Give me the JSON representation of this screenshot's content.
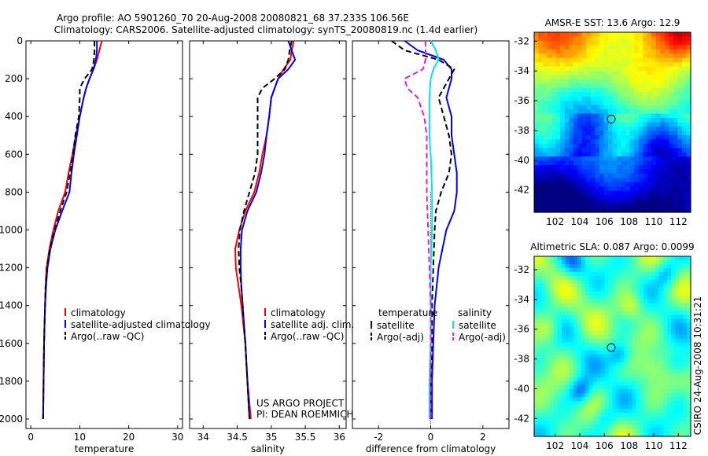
{
  "header": {
    "line1": "Argo profile: AO 5901260_70 20-Aug-2008 20080821_68 37.233S 106.56E",
    "line2": "Climatology: CARS2006. Satellite-adjusted climatology: synTS_20080819.nc (1.4d earlier)"
  },
  "side_label": "CSIRO 24-Aug-2008 10:31:21",
  "credits": {
    "line1": "US ARGO PROJECT",
    "line2": "PI: DEAN ROEMMICH"
  },
  "colors": {
    "climatology": "#ff0000",
    "satellite": "#0000ff",
    "argo": "#000000",
    "sat_sal": "#00e5ee",
    "argo_sal": "#e020e0"
  },
  "chart_data": [
    {
      "type": "line",
      "xlabel": "temperature",
      "xlim": [
        -1,
        31
      ],
      "ylim": [
        2050,
        0
      ],
      "xticks": [
        0,
        10,
        20,
        30
      ],
      "yticks": [
        0,
        200,
        400,
        600,
        800,
        1000,
        1200,
        1400,
        1600,
        1800,
        2000
      ],
      "ytick_labels": [
        "0",
        "200",
        "400",
        "600",
        "800",
        "1000",
        "1200",
        "1400",
        "1600",
        "1800",
        "2000"
      ],
      "legend": [
        "climatology",
        "satellite-adjusted climatology",
        "Argo(..raw -QC)"
      ],
      "series": [
        {
          "name": "climatology",
          "style": "solid",
          "color": "#ff0000",
          "depth": [
            0,
            50,
            100,
            150,
            200,
            250,
            300,
            400,
            500,
            600,
            700,
            800,
            900,
            1000,
            1100,
            1200,
            1300,
            1400,
            1500,
            1600,
            1800,
            2000
          ],
          "values": [
            14.5,
            14.0,
            13.5,
            12.8,
            12.0,
            11.3,
            10.8,
            10.0,
            9.2,
            8.5,
            7.7,
            7.0,
            5.6,
            4.6,
            3.8,
            3.2,
            3.0,
            2.9,
            2.8,
            2.7,
            2.6,
            2.5
          ]
        },
        {
          "name": "satellite-adjusted climatology",
          "style": "solid",
          "color": "#0000ff",
          "depth": [
            0,
            50,
            100,
            150,
            200,
            250,
            300,
            400,
            500,
            600,
            700,
            800,
            900,
            1000,
            1100,
            1200,
            1300,
            1400,
            1500,
            1600,
            1800,
            2000
          ],
          "values": [
            13.5,
            13.5,
            13.3,
            12.8,
            12.0,
            11.3,
            10.8,
            10.0,
            9.4,
            8.8,
            8.3,
            7.9,
            6.4,
            5.0,
            4.0,
            3.4,
            3.1,
            2.9,
            2.8,
            2.7,
            2.6,
            2.5
          ]
        },
        {
          "name": "Argo(..raw -QC)",
          "style": "dash",
          "color": "#000000",
          "depth": [
            0,
            50,
            100,
            150,
            200,
            250,
            300,
            400,
            500,
            600,
            700,
            800,
            900,
            1000,
            1100,
            1200,
            1300,
            1400,
            1500,
            1600,
            1800,
            2000
          ],
          "values": [
            13.0,
            13.0,
            12.9,
            12.5,
            11.0,
            10.0,
            10.0,
            9.8,
            9.1,
            8.6,
            8.0,
            7.3,
            6.0,
            4.8,
            3.9,
            3.3,
            3.0,
            2.9,
            2.8,
            2.7,
            2.6,
            2.5
          ]
        }
      ]
    },
    {
      "type": "line",
      "xlabel": "salinity",
      "xlim": [
        33.8,
        36.1
      ],
      "ylim": [
        2050,
        0
      ],
      "xticks": [
        34,
        34.5,
        35,
        35.5,
        36
      ],
      "xtick_labels": [
        "34",
        "34.5",
        "35",
        "35.5",
        "36"
      ],
      "legend": [
        "climatology",
        "satellite adj. clim.",
        "Argo(..raw -QC)"
      ],
      "series": [
        {
          "name": "climatology",
          "style": "solid",
          "color": "#ff0000",
          "depth": [
            0,
            50,
            100,
            150,
            200,
            300,
            400,
            500,
            600,
            700,
            800,
            900,
            1000,
            1100,
            1200,
            1300,
            1400,
            1600,
            1800,
            2000
          ],
          "values": [
            35.33,
            35.3,
            35.28,
            35.18,
            35.1,
            35.0,
            34.97,
            34.93,
            34.87,
            34.82,
            34.75,
            34.62,
            34.53,
            34.47,
            34.48,
            34.52,
            34.56,
            34.62,
            34.65,
            34.7
          ]
        },
        {
          "name": "satellite adj. clim.",
          "style": "solid",
          "color": "#0000ff",
          "depth": [
            0,
            50,
            100,
            150,
            200,
            300,
            400,
            500,
            600,
            700,
            800,
            900,
            1000,
            1100,
            1200,
            1300,
            1400,
            1600,
            1800,
            2000
          ],
          "values": [
            35.25,
            35.3,
            35.35,
            35.25,
            35.1,
            35.0,
            34.97,
            34.93,
            34.9,
            34.85,
            34.78,
            34.65,
            34.57,
            34.55,
            34.55,
            34.56,
            34.58,
            34.62,
            34.65,
            34.68
          ]
        },
        {
          "name": "Argo(..raw -QC)",
          "style": "dash",
          "color": "#000000",
          "depth": [
            0,
            50,
            100,
            150,
            200,
            250,
            300,
            400,
            500,
            600,
            700,
            800,
            900,
            1000,
            1100,
            1200,
            1300,
            1400,
            1600,
            1800,
            2000
          ],
          "values": [
            35.3,
            35.27,
            35.25,
            35.2,
            35.05,
            34.87,
            34.8,
            34.8,
            34.8,
            34.8,
            34.76,
            34.68,
            34.6,
            34.54,
            34.52,
            34.53,
            34.56,
            34.58,
            34.62,
            34.65,
            34.68
          ]
        }
      ]
    },
    {
      "type": "line",
      "xlabel": "difference from climatology",
      "xlim": [
        -3,
        3
      ],
      "ylim": [
        2050,
        0
      ],
      "xticks": [
        -2,
        0,
        2
      ],
      "xtick_labels": [
        "-2",
        "0",
        "2"
      ],
      "legend_temperature_title": "temperature",
      "legend_salinity_title": "salinity",
      "legend": [
        "satellite",
        "Argo(-adj)",
        "satellite",
        "Argo(-adj)"
      ],
      "series": [
        {
          "name": "satellite",
          "group": "temperature",
          "style": "solid",
          "color": "#0000ff",
          "depth": [
            0,
            50,
            100,
            150,
            200,
            300,
            400,
            500,
            600,
            700,
            800,
            900,
            1000,
            1200,
            1400,
            1600,
            1800,
            2000
          ],
          "values": [
            -1.0,
            -0.5,
            0.5,
            0.8,
            0.8,
            0.6,
            0.8,
            0.8,
            0.9,
            1.0,
            1.0,
            0.9,
            0.6,
            0.3,
            0.15,
            0.1,
            0.05,
            0.05
          ]
        },
        {
          "name": "Argo(-adj)",
          "group": "temperature",
          "style": "dash",
          "color": "#000000",
          "depth": [
            0,
            50,
            100,
            150,
            200,
            300,
            400,
            500,
            600,
            700,
            800,
            900,
            1000,
            1200,
            1400,
            1600,
            1800,
            2000
          ],
          "values": [
            -1.5,
            -1.0,
            0.3,
            0.9,
            0.7,
            0.3,
            0.5,
            0.7,
            0.8,
            0.7,
            0.4,
            0.2,
            0.15,
            0.1,
            0.05,
            0.05,
            0.0,
            0.0
          ]
        },
        {
          "name": "satellite",
          "group": "salinity",
          "style": "solid",
          "color": "#00e5ee",
          "depth": [
            0,
            50,
            100,
            150,
            200,
            300,
            400,
            500,
            600,
            800,
            1000,
            1200,
            1400,
            1600,
            1800,
            2000
          ],
          "values": [
            0.0,
            0.2,
            0.3,
            0.1,
            0.0,
            -0.05,
            -0.05,
            -0.05,
            0.0,
            0.05,
            0.05,
            0.0,
            0.0,
            0.0,
            -0.05,
            -0.05
          ]
        },
        {
          "name": "Argo(-adj)",
          "group": "salinity",
          "style": "dash",
          "color": "#e020e0",
          "depth": [
            0,
            50,
            100,
            150,
            200,
            250,
            300,
            400,
            500,
            600,
            800,
            1000,
            1200,
            1400,
            1600,
            1800,
            2000
          ],
          "values": [
            -0.2,
            -0.2,
            -0.2,
            -0.3,
            -1.0,
            -0.9,
            -0.5,
            -0.25,
            -0.15,
            -0.15,
            -0.15,
            -0.1,
            -0.05,
            0.0,
            0.0,
            0.0,
            0.0
          ]
        }
      ]
    },
    {
      "type": "heatmap",
      "title": "AMSR-E SST: 13.6 Argo: 12.9",
      "xlim": [
        100.3,
        113
      ],
      "ylim": [
        -43.5,
        -31.4
      ],
      "xticks": [
        102,
        104,
        106,
        108,
        110,
        112
      ],
      "yticks": [
        -32,
        -34,
        -36,
        -38,
        -40,
        -42
      ],
      "marker": {
        "lon": 106.56,
        "lat": -37.233
      },
      "colormap": "jet"
    },
    {
      "type": "heatmap",
      "title": "Altimetric SLA: 0.087 Argo: 0.0099",
      "xlim": [
        100.3,
        113
      ],
      "ylim": [
        -43.2,
        -31.1
      ],
      "xticks": [
        102,
        104,
        106,
        108,
        110,
        112
      ],
      "yticks": [
        -32,
        -34,
        -36,
        -38,
        -40,
        -42
      ],
      "marker": {
        "lon": 106.56,
        "lat": -37.233
      },
      "colormap": "jet"
    }
  ]
}
